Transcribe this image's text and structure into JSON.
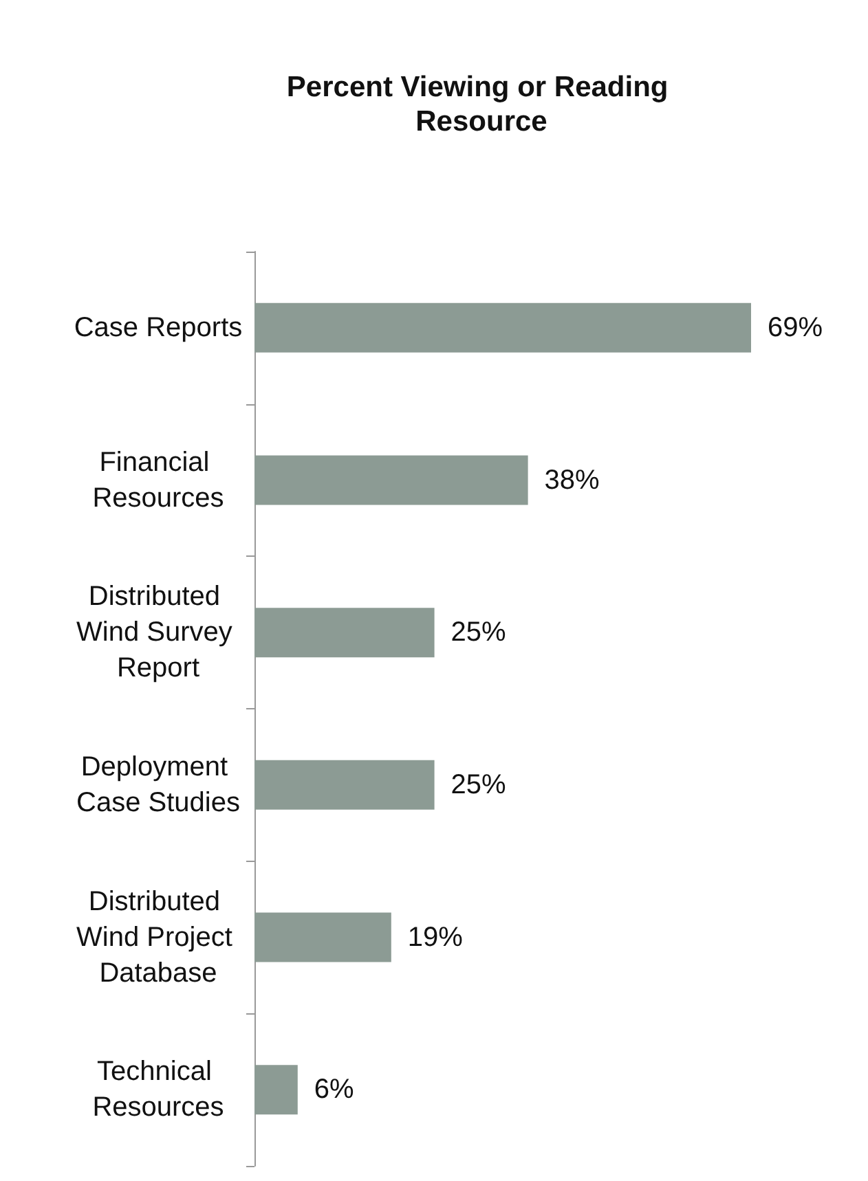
{
  "chart_data": {
    "type": "bar",
    "orientation": "horizontal",
    "title": "Percent Viewing or Reading Resource",
    "categories": [
      "Case Reports",
      "Financial Resources",
      "Distributed Wind Survey Report",
      "Deployment Case Studies",
      "Distributed Wind Project Database",
      "Technical Resources"
    ],
    "values": [
      69,
      38,
      25,
      25,
      19,
      6
    ],
    "value_labels": [
      "69%",
      "38%",
      "25%",
      "25%",
      "19%",
      "6%"
    ],
    "color": "#8c9b94"
  }
}
